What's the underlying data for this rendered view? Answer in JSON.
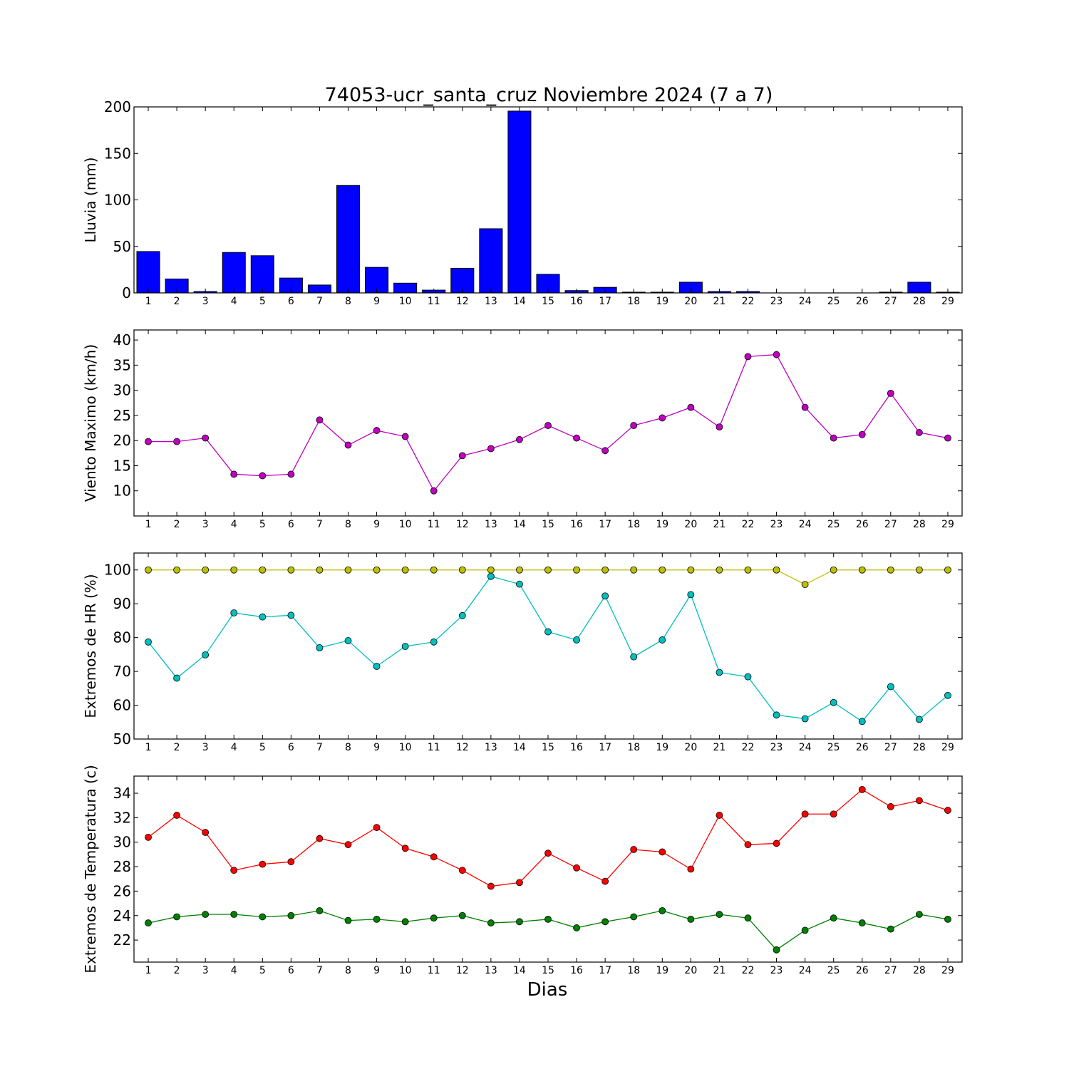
{
  "figure": {
    "title": "74053-ucr_santa_cruz Noviembre 2024  (7 a 7)",
    "xlabel": "Dias"
  },
  "chart_data": [
    {
      "type": "bar",
      "ylabel": "Lluvia (mm)",
      "categories": [
        1,
        2,
        3,
        4,
        5,
        6,
        7,
        8,
        9,
        10,
        11,
        12,
        13,
        14,
        15,
        16,
        17,
        18,
        19,
        20,
        21,
        22,
        23,
        24,
        25,
        26,
        27,
        28,
        29
      ],
      "xlim": [
        0.5,
        29.5
      ],
      "ylim": [
        0,
        200
      ],
      "yticks": [
        0,
        50,
        100,
        150,
        200
      ],
      "series": [
        {
          "color": "#0000ff",
          "values": [
            44.5,
            15,
            1.5,
            43.5,
            40,
            16,
            8.5,
            115.5,
            27.5,
            10.5,
            3,
            26.5,
            69,
            195.5,
            20,
            2.5,
            6,
            0.8,
            0.8,
            11.5,
            1.5,
            1.5,
            0,
            0,
            0,
            0,
            0.8,
            11.5,
            0.8
          ]
        }
      ]
    },
    {
      "type": "line",
      "ylabel": "Viento Maximo (km/h)",
      "x": [
        1,
        2,
        3,
        4,
        5,
        6,
        7,
        8,
        9,
        10,
        11,
        12,
        13,
        14,
        15,
        16,
        17,
        18,
        19,
        20,
        21,
        22,
        23,
        24,
        25,
        26,
        27,
        28,
        29
      ],
      "xlim": [
        0.5,
        29.5
      ],
      "ylim": [
        5,
        42
      ],
      "yticks": [
        10,
        15,
        20,
        25,
        30,
        35,
        40
      ],
      "series": [
        {
          "color": "#bf00bf",
          "values": [
            19.8,
            19.8,
            20.5,
            13.3,
            13.0,
            13.3,
            24.1,
            19.1,
            22.0,
            20.8,
            10.0,
            17.0,
            18.4,
            20.2,
            23.0,
            20.5,
            18.0,
            23.0,
            24.5,
            26.6,
            22.7,
            36.7,
            37.1,
            26.6,
            20.5,
            21.2,
            29.4,
            21.6,
            20.5
          ]
        }
      ]
    },
    {
      "type": "line",
      "ylabel": "Extremos de HR (%)",
      "x": [
        1,
        2,
        3,
        4,
        5,
        6,
        7,
        8,
        9,
        10,
        11,
        12,
        13,
        14,
        15,
        16,
        17,
        18,
        19,
        20,
        21,
        22,
        23,
        24,
        25,
        26,
        27,
        28,
        29
      ],
      "xlim": [
        0.5,
        29.5
      ],
      "ylim": [
        50,
        105
      ],
      "yticks": [
        50,
        60,
        70,
        80,
        90,
        100
      ],
      "series": [
        {
          "color": "#bfbf00",
          "values": [
            100,
            100,
            100,
            100,
            100,
            100,
            100,
            100,
            100,
            100,
            100,
            100,
            100,
            100,
            100,
            100,
            100,
            100,
            100,
            100,
            100,
            100,
            100,
            95.7,
            100,
            100,
            100,
            100,
            100
          ]
        },
        {
          "color": "#00bfbf",
          "values": [
            78.7,
            68.0,
            74.9,
            87.3,
            86.1,
            86.6,
            77.0,
            79.1,
            71.5,
            77.4,
            78.7,
            86.5,
            98.1,
            95.8,
            81.7,
            79.3,
            92.3,
            74.3,
            79.3,
            92.7,
            69.7,
            68.4,
            57.1,
            56.0,
            60.8,
            55.2,
            65.5,
            55.8,
            62.9
          ]
        }
      ]
    },
    {
      "type": "line",
      "ylabel": "Extremos de Temperatura (c)",
      "x": [
        1,
        2,
        3,
        4,
        5,
        6,
        7,
        8,
        9,
        10,
        11,
        12,
        13,
        14,
        15,
        16,
        17,
        18,
        19,
        20,
        21,
        22,
        23,
        24,
        25,
        26,
        27,
        28,
        29
      ],
      "xlim": [
        0.5,
        29.5
      ],
      "ylim": [
        20.2,
        35.4
      ],
      "yticks": [
        22,
        24,
        26,
        28,
        30,
        32,
        34
      ],
      "series": [
        {
          "color": "#ff0000",
          "values": [
            30.4,
            32.2,
            30.8,
            27.7,
            28.2,
            28.4,
            30.3,
            29.8,
            31.2,
            29.5,
            28.8,
            27.7,
            26.4,
            26.7,
            29.1,
            27.9,
            26.8,
            29.4,
            29.2,
            27.8,
            32.2,
            29.8,
            29.9,
            32.3,
            32.3,
            34.3,
            32.9,
            33.4,
            32.6
          ]
        },
        {
          "color": "#008000",
          "values": [
            23.4,
            23.9,
            24.1,
            24.1,
            23.9,
            24.0,
            24.4,
            23.6,
            23.7,
            23.5,
            23.8,
            24.0,
            23.4,
            23.5,
            23.7,
            23.0,
            23.5,
            23.9,
            24.4,
            23.7,
            24.1,
            23.8,
            21.2,
            22.8,
            23.8,
            23.4,
            22.9,
            24.1,
            23.7
          ]
        }
      ]
    }
  ]
}
